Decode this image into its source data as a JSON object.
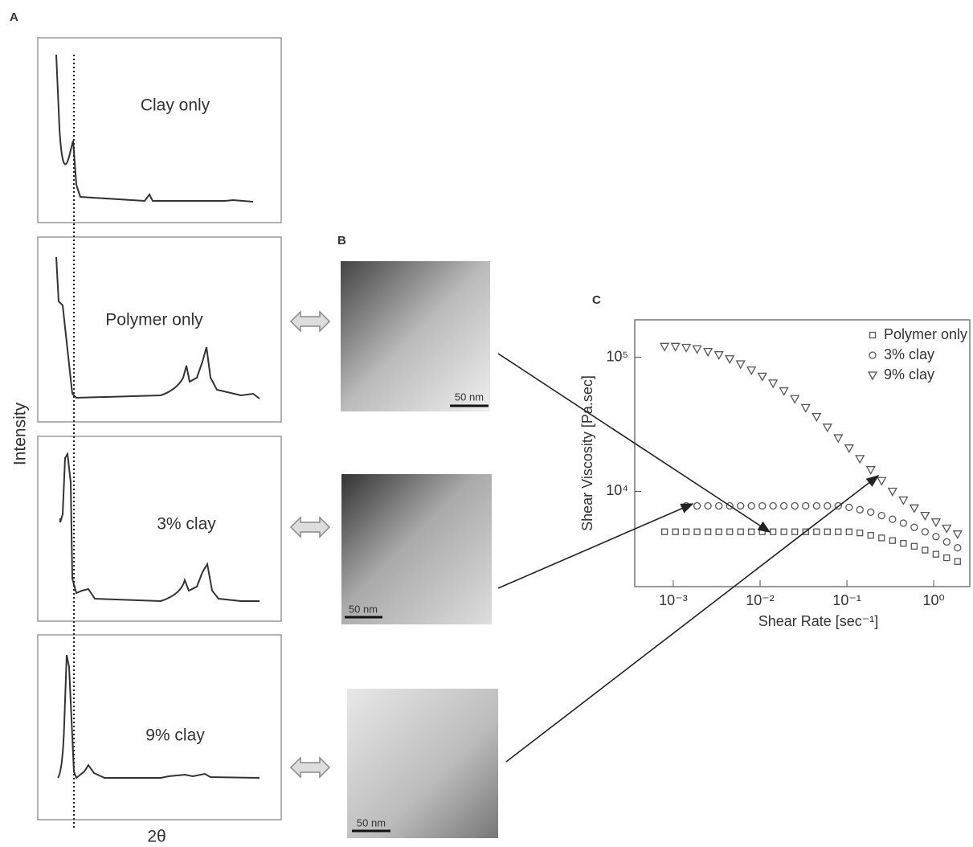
{
  "figure": {
    "panels": [
      "A",
      "B",
      "C"
    ],
    "xrd": {
      "labels": [
        "Clay only",
        "Polymer only",
        "3% clay",
        "9% clay"
      ],
      "y_label": "Intensity",
      "x_label": "2θ"
    },
    "tem": {
      "scale_labels": [
        "50 nm",
        "50 nm",
        "50 nm"
      ]
    }
  },
  "chart_data": {
    "type": "scatter",
    "xlabel": "Shear Rate [sec⁻¹]",
    "ylabel": "Shear Viscosity [Pa.sec]",
    "log_x": true,
    "log_y": true,
    "xlim": [
      0.00036,
      2.6
    ],
    "ylim": [
      1950,
      190000
    ],
    "xticks": [
      {
        "value": 0.001,
        "label": "10⁻³"
      },
      {
        "value": 0.01,
        "label": "10⁻²"
      },
      {
        "value": 0.1,
        "label": "10⁻¹"
      },
      {
        "value": 1,
        "label": "10⁰"
      }
    ],
    "yticks": [
      {
        "value": 10000,
        "label": "10⁴"
      },
      {
        "value": 100000,
        "label": "10⁵"
      }
    ],
    "legend": "upper right",
    "x": [
      0.000794,
      0.00106,
      0.00141,
      0.00188,
      0.00251,
      0.00335,
      0.00447,
      0.00596,
      0.00794,
      0.0106,
      0.0141,
      0.0188,
      0.0251,
      0.0335,
      0.0447,
      0.0596,
      0.0794,
      0.106,
      0.141,
      0.188,
      0.251,
      0.335,
      0.447,
      0.596,
      0.794,
      1.06,
      1.41,
      1.88
    ],
    "series": [
      {
        "name": "Polymer only",
        "marker": "square",
        "color": "#555555",
        "values": [
          5000,
          5000,
          5000,
          5000,
          5000,
          5000,
          5000,
          5000,
          5000,
          5000,
          5000,
          5000,
          5000,
          5000,
          5000,
          5000,
          5000,
          5000,
          4900,
          4700,
          4500,
          4300,
          4100,
          3900,
          3650,
          3400,
          3200,
          3000
        ]
      },
      {
        "name": "3% clay",
        "marker": "circle",
        "color": "#555555",
        "values": [
          null,
          null,
          7800,
          7800,
          7800,
          7800,
          7800,
          7800,
          7800,
          7800,
          7800,
          7800,
          7800,
          7800,
          7800,
          7800,
          7800,
          7600,
          7300,
          7000,
          6600,
          6200,
          5800,
          5400,
          5000,
          4600,
          4200,
          3800
        ]
      },
      {
        "name": "9% clay",
        "marker": "triangle",
        "color": "#555555",
        "values": [
          120000,
          120000,
          118000,
          115000,
          110000,
          104000,
          97000,
          89000,
          80000,
          72000,
          64000,
          56000,
          49000,
          42000,
          36000,
          30000,
          25000,
          21000,
          17500,
          14500,
          12000,
          10000,
          8600,
          7500,
          6600,
          5900,
          5300,
          4800
        ]
      }
    ]
  }
}
